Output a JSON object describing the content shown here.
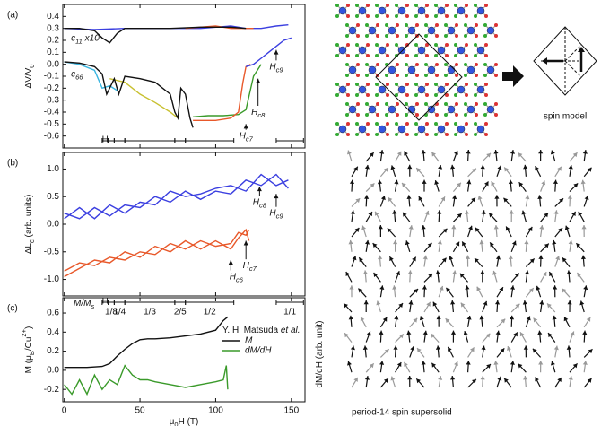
{
  "labels": {
    "spin_model": "spin model",
    "supersolid": "period-14 spin supersolid"
  },
  "phases": [
    {
      "label": "H",
      "start": 25,
      "end": 29
    },
    {
      "label": "1/8",
      "start": 29,
      "end": 33
    },
    {
      "label": "1/4",
      "start": 33,
      "end": 40
    },
    {
      "label": "1/3",
      "start": 40,
      "end": 73
    },
    {
      "label": "2/5",
      "start": 73,
      "end": 80
    },
    {
      "label": "1/2",
      "start": 80,
      "end": 112
    },
    {
      "label": "1/1",
      "start": 140,
      "end": 158
    }
  ],
  "phase_axis_label": [
    {
      "text": "M/M"
    },
    {
      "text": "s",
      "shift": "sub"
    }
  ],
  "chart_data": [
    {
      "type": "line",
      "panel": "(a)",
      "ylabel": [
        {
          "text": "ΔV/V"
        },
        {
          "text": "0",
          "shift": "sub"
        }
      ],
      "xlim": [
        -1,
        159
      ],
      "xticks": [
        0,
        50,
        100,
        150
      ],
      "ylim": [
        -0.7,
        0.5
      ],
      "yticks": [
        -0.6,
        -0.5,
        -0.4,
        -0.3,
        -0.2,
        -0.1,
        {
          "value": 0,
          "label": "0.0"
        },
        0.1,
        0.2,
        0.3,
        0.4
      ],
      "curve_labels": [
        [
          {
            "text": "c"
          },
          {
            "text": "11",
            "shift": "sub"
          },
          {
            "text": " x10"
          }
        ],
        [
          {
            "text": "c"
          },
          {
            "text": "66",
            "shift": "sub"
          }
        ]
      ],
      "annotations": [
        {
          "parts": [
            {
              "text": "H"
            },
            {
              "text": "c7",
              "shift": "sub"
            }
          ],
          "x": 120
        },
        {
          "parts": [
            {
              "text": "H"
            },
            {
              "text": "c8",
              "shift": "sub"
            }
          ],
          "x": 128
        },
        {
          "parts": [
            {
              "text": "H"
            },
            {
              "text": "c9",
              "shift": "sub"
            }
          ],
          "x": 140
        }
      ],
      "series": [
        {
          "color": "#3b3fe0",
          "x": [
            0,
            20,
            40,
            60,
            90,
            110,
            120,
            130,
            140,
            148
          ],
          "values": [
            0.3,
            0.29,
            0.3,
            0.3,
            0.3,
            0.32,
            0.3,
            0.3,
            0.32,
            0.33
          ]
        },
        {
          "color": "#e8582a",
          "x": [
            80,
            90,
            100,
            110,
            120,
            125
          ],
          "values": [
            0.3,
            0.31,
            0.32,
            0.3,
            0.3,
            0.3
          ]
        },
        {
          "color": "#111111",
          "x": [
            0,
            10,
            20,
            25,
            30,
            35,
            40,
            50,
            70,
            90,
            110,
            120
          ],
          "values": [
            0.3,
            0.3,
            0.28,
            0.22,
            0.18,
            0.26,
            0.3,
            0.3,
            0.3,
            0.31,
            0.31,
            0.3
          ]
        },
        {
          "color": "#3ab5e0",
          "x": [
            0,
            10,
            20,
            25,
            30,
            35
          ],
          "values": [
            0.02,
            0.0,
            -0.05,
            -0.2,
            -0.18,
            -0.22
          ]
        },
        {
          "color": "#c8c030",
          "x": [
            30,
            40,
            50,
            60,
            70,
            75
          ],
          "values": [
            -0.12,
            -0.15,
            -0.25,
            -0.32,
            -0.4,
            -0.45
          ]
        },
        {
          "color": "#111111",
          "x": [
            0,
            10,
            20,
            25,
            28,
            33,
            36,
            40,
            50,
            60,
            70,
            73,
            75,
            77,
            80,
            83,
            85
          ],
          "values": [
            0.02,
            0.01,
            -0.02,
            -0.08,
            -0.25,
            -0.12,
            -0.25,
            -0.1,
            -0.12,
            -0.15,
            -0.25,
            -0.4,
            -0.45,
            -0.2,
            -0.25,
            -0.45,
            -0.53
          ]
        },
        {
          "color": "#3a9a2a",
          "x": [
            85,
            95,
            105,
            115,
            120,
            125,
            130
          ],
          "values": [
            -0.44,
            -0.43,
            -0.43,
            -0.42,
            -0.38,
            -0.1,
            0.0
          ]
        },
        {
          "color": "#e8582a",
          "x": [
            85,
            100,
            110,
            115,
            118,
            120,
            123
          ],
          "values": [
            -0.47,
            -0.47,
            -0.45,
            -0.4,
            -0.15,
            -0.02,
            0.0
          ]
        },
        {
          "color": "#3b3fe0",
          "x": [
            120,
            125,
            130,
            135,
            140,
            145,
            150
          ],
          "values": [
            -0.02,
            0.0,
            0.05,
            0.1,
            0.15,
            0.2,
            0.22
          ]
        }
      ]
    },
    {
      "type": "line",
      "panel": "(b)",
      "ylabel": [
        {
          "text": "ΔL"
        },
        {
          "text": "c",
          "shift": "sub"
        },
        {
          "text": " (arb. units)"
        }
      ],
      "xlim": [
        -1,
        159
      ],
      "xticks": [
        0,
        50,
        100,
        150
      ],
      "ylim": [
        -1.3,
        1.3
      ],
      "yticks": [
        {
          "value": -1,
          "label": "-1.0"
        },
        -0.5,
        {
          "value": 0,
          "label": "0.0"
        },
        0.5,
        {
          "value": 1,
          "label": "1.0"
        }
      ],
      "annotations": [
        {
          "parts": [
            {
              "text": "H"
            },
            {
              "text": "c8",
              "shift": "sub"
            }
          ],
          "x": 129
        },
        {
          "parts": [
            {
              "text": "H"
            },
            {
              "text": "c9",
              "shift": "sub"
            }
          ],
          "x": 140
        },
        {
          "parts": [
            {
              "text": "H"
            },
            {
              "text": "c7",
              "shift": "sub"
            }
          ],
          "x": 120
        },
        {
          "parts": [
            {
              "text": "H"
            },
            {
              "text": "c6",
              "shift": "sub"
            }
          ],
          "x": 110
        }
      ],
      "series": [
        {
          "color": "#3b3fe0",
          "x": [
            0,
            10,
            20,
            30,
            40,
            50,
            60,
            70,
            80,
            90,
            100,
            110,
            120,
            130,
            140,
            148
          ],
          "values": [
            0.1,
            0.3,
            0.1,
            0.35,
            0.2,
            0.4,
            0.35,
            0.6,
            0.5,
            0.55,
            0.65,
            0.7,
            0.6,
            0.9,
            0.7,
            0.8
          ]
        },
        {
          "color": "#3b3fe0",
          "x": [
            0,
            10,
            20,
            30,
            40,
            50,
            60,
            70,
            80,
            90,
            100,
            110,
            120,
            130,
            140,
            148
          ],
          "values": [
            0.2,
            0.1,
            0.3,
            0.15,
            0.35,
            0.3,
            0.5,
            0.4,
            0.6,
            0.45,
            0.6,
            0.55,
            0.8,
            0.7,
            0.9,
            0.65
          ]
        },
        {
          "color": "#e8582a",
          "x": [
            0,
            10,
            20,
            30,
            40,
            50,
            60,
            70,
            80,
            90,
            100,
            110,
            115,
            120,
            122
          ],
          "values": [
            -0.85,
            -0.7,
            -0.75,
            -0.6,
            -0.65,
            -0.5,
            -0.55,
            -0.35,
            -0.45,
            -0.3,
            -0.4,
            -0.35,
            -0.15,
            -0.2,
            -0.1
          ]
        },
        {
          "color": "#e8582a",
          "x": [
            0,
            10,
            20,
            30,
            40,
            50,
            60,
            70,
            80,
            90,
            100,
            110,
            115,
            120,
            122
          ],
          "values": [
            -0.95,
            -0.8,
            -0.65,
            -0.7,
            -0.5,
            -0.6,
            -0.4,
            -0.5,
            -0.3,
            -0.45,
            -0.3,
            -0.45,
            -0.25,
            -0.1,
            -0.3
          ]
        }
      ]
    },
    {
      "type": "line",
      "panel": "(c)",
      "ylabel": [
        {
          "text": "M (μ"
        },
        {
          "text": "B",
          "shift": "sub"
        },
        {
          "text": "/Cu"
        },
        {
          "text": "2+",
          "shift": "super"
        },
        {
          "text": ")"
        }
      ],
      "y2label": [
        {
          "text": "dM/dH (arb. unit)"
        }
      ],
      "xlabel": [
        {
          "text": "μ"
        },
        {
          "text": "0",
          "shift": "sub"
        },
        {
          "text": "H (T)"
        }
      ],
      "xlim": [
        -1,
        159
      ],
      "xticks": [
        0,
        50,
        100,
        150
      ],
      "ylim": [
        -0.33,
        0.76
      ],
      "yticks": [
        -0.2,
        {
          "value": 0,
          "label": "0.0"
        },
        0.2,
        0.4,
        0.6
      ],
      "y2lim": [
        -0.33,
        0.76
      ],
      "legend_title": [
        {
          "text": "Y. H. Matsuda "
        },
        {
          "text": "et al.",
          "style": "italic"
        }
      ],
      "series": [
        {
          "name": "M",
          "color": "#111111",
          "x": [
            0,
            15,
            25,
            30,
            35,
            40,
            45,
            50,
            55,
            60,
            70,
            80,
            90,
            100,
            105,
            108
          ],
          "values": [
            0.03,
            0.03,
            0.04,
            0.07,
            0.15,
            0.22,
            0.28,
            0.32,
            0.33,
            0.33,
            0.34,
            0.36,
            0.38,
            0.42,
            0.52,
            0.56
          ]
        },
        {
          "name": "dM/dH",
          "color": "#3a9a2a",
          "axis": "y2",
          "x": [
            0,
            5,
            10,
            15,
            20,
            25,
            30,
            35,
            40,
            45,
            50,
            55,
            60,
            70,
            80,
            90,
            100,
            105,
            107,
            108
          ],
          "values": [
            -0.15,
            -0.25,
            -0.1,
            -0.25,
            -0.05,
            -0.2,
            -0.1,
            -0.15,
            0.05,
            -0.05,
            -0.1,
            -0.1,
            -0.12,
            -0.15,
            -0.18,
            -0.15,
            -0.12,
            -0.1,
            0.05,
            -0.2
          ]
        }
      ]
    }
  ]
}
